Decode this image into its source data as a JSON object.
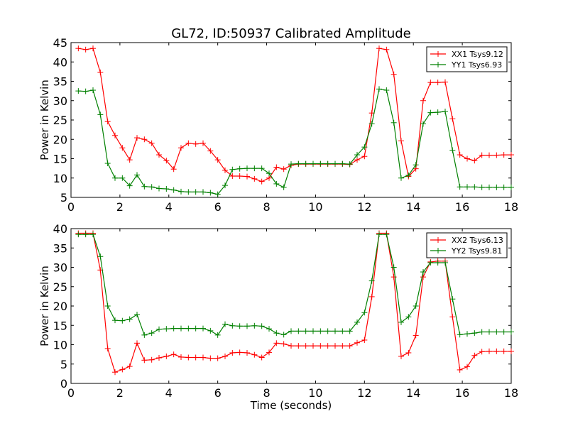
{
  "chart_data": [
    {
      "type": "line",
      "title": "GL72, ID:50937 Calibrated Amplitude",
      "xlabel": "",
      "ylabel": "Power in Kelvin",
      "xlim": [
        0,
        18
      ],
      "ylim": [
        5,
        45
      ],
      "xticks": [
        "0",
        "2",
        "4",
        "6",
        "8",
        "10",
        "12",
        "14",
        "16",
        "18"
      ],
      "yticks": [
        "5",
        "10",
        "15",
        "20",
        "25",
        "30",
        "35",
        "40",
        "45"
      ],
      "x": [
        0.3,
        0.6,
        0.9,
        1.2,
        1.5,
        1.8,
        2.1,
        2.4,
        2.7,
        3.0,
        3.3,
        3.6,
        3.9,
        4.2,
        4.5,
        4.8,
        5.1,
        5.4,
        5.7,
        6.0,
        6.3,
        6.6,
        6.9,
        7.2,
        7.5,
        7.8,
        8.1,
        8.4,
        8.7,
        9.0,
        9.3,
        9.6,
        9.9,
        10.2,
        10.5,
        10.8,
        11.1,
        11.4,
        11.7,
        12.0,
        12.3,
        12.6,
        12.9,
        13.2,
        13.5,
        13.8,
        14.1,
        14.4,
        14.7,
        15.0,
        15.3,
        15.6,
        15.9,
        16.2,
        16.5,
        16.8,
        17.1,
        17.4,
        17.7,
        18.0
      ],
      "series": [
        {
          "name": "XX1 Tsys9.12",
          "color": "#ff0000",
          "values": [
            43.5,
            43.2,
            43.5,
            37.3,
            24.6,
            21.0,
            17.8,
            14.7,
            20.4,
            20.0,
            19.0,
            16.0,
            14.5,
            12.3,
            17.8,
            19.0,
            18.8,
            19.0,
            17.0,
            14.7,
            12.0,
            10.5,
            10.5,
            10.4,
            9.8,
            9.1,
            10.0,
            12.8,
            12.3,
            13.3,
            13.6,
            13.6,
            13.6,
            13.6,
            13.6,
            13.6,
            13.6,
            13.5,
            14.7,
            15.6,
            26.8,
            43.5,
            43.2,
            36.8,
            19.6,
            10.4,
            12.4,
            30.0,
            34.7,
            34.7,
            34.8,
            25.3,
            16.0,
            15.0,
            14.5,
            15.9,
            15.9,
            15.9,
            16.0,
            16.0
          ]
        },
        {
          "name": "YY1 Tsys6.93",
          "color": "#008000",
          "values": [
            32.5,
            32.4,
            32.7,
            26.4,
            13.8,
            10.0,
            10.0,
            8.0,
            10.8,
            7.8,
            7.7,
            7.3,
            7.2,
            6.9,
            6.5,
            6.4,
            6.4,
            6.4,
            6.2,
            5.8,
            8.1,
            12.2,
            12.4,
            12.5,
            12.5,
            12.5,
            11.2,
            8.5,
            7.6,
            13.6,
            13.7,
            13.7,
            13.7,
            13.7,
            13.7,
            13.7,
            13.7,
            13.6,
            16.0,
            18.0,
            24.0,
            33.0,
            32.7,
            24.3,
            10.0,
            10.7,
            13.4,
            24.0,
            26.9,
            27.0,
            27.2,
            17.2,
            7.7,
            7.7,
            7.7,
            7.6,
            7.6,
            7.6,
            7.6,
            7.6
          ]
        }
      ],
      "legend": "top-right"
    },
    {
      "type": "line",
      "title": "",
      "xlabel": "Time (seconds)",
      "ylabel": "Power in Kelvin",
      "xlim": [
        0,
        18
      ],
      "ylim": [
        0,
        40
      ],
      "xticks": [
        "0",
        "2",
        "4",
        "6",
        "8",
        "10",
        "12",
        "14",
        "16",
        "18"
      ],
      "yticks": [
        "0",
        "5",
        "10",
        "15",
        "20",
        "25",
        "30",
        "35",
        "40"
      ],
      "x": [
        0.3,
        0.6,
        0.9,
        1.2,
        1.5,
        1.8,
        2.1,
        2.4,
        2.7,
        3.0,
        3.3,
        3.6,
        3.9,
        4.2,
        4.5,
        4.8,
        5.1,
        5.4,
        5.7,
        6.0,
        6.3,
        6.6,
        6.9,
        7.2,
        7.5,
        7.8,
        8.1,
        8.4,
        8.7,
        9.0,
        9.3,
        9.6,
        9.9,
        10.2,
        10.5,
        10.8,
        11.1,
        11.4,
        11.7,
        12.0,
        12.3,
        12.6,
        12.9,
        13.2,
        13.5,
        13.8,
        14.1,
        14.4,
        14.7,
        15.0,
        15.3,
        15.6,
        15.9,
        16.2,
        16.5,
        16.8,
        17.1,
        17.4,
        17.7,
        18.0
      ],
      "series": [
        {
          "name": "XX2 Tsys6.13",
          "color": "#ff0000",
          "values": [
            38.8,
            38.8,
            38.8,
            29.3,
            9.0,
            2.9,
            3.6,
            4.4,
            10.4,
            6.0,
            6.1,
            6.6,
            7.0,
            7.5,
            6.8,
            6.7,
            6.7,
            6.7,
            6.5,
            6.5,
            7.0,
            7.9,
            8.0,
            7.9,
            7.4,
            6.7,
            8.0,
            10.4,
            10.2,
            9.7,
            9.7,
            9.7,
            9.7,
            9.7,
            9.7,
            9.7,
            9.7,
            9.7,
            10.5,
            11.2,
            22.4,
            38.8,
            38.8,
            27.5,
            7.0,
            7.9,
            12.4,
            27.5,
            31.4,
            31.6,
            31.6,
            17.2,
            3.5,
            4.3,
            7.2,
            8.2,
            8.3,
            8.3,
            8.3,
            8.3
          ]
        },
        {
          "name": "YY2 Tsys9.81",
          "color": "#008000",
          "values": [
            38.5,
            38.5,
            38.5,
            32.8,
            20.0,
            16.3,
            16.2,
            16.6,
            17.8,
            12.5,
            13.0,
            14.0,
            14.1,
            14.2,
            14.2,
            14.2,
            14.2,
            14.2,
            13.6,
            12.5,
            15.3,
            14.9,
            14.8,
            14.8,
            14.9,
            14.8,
            14.1,
            13.0,
            12.6,
            13.5,
            13.5,
            13.5,
            13.5,
            13.5,
            13.5,
            13.5,
            13.5,
            13.5,
            15.8,
            18.3,
            26.5,
            38.5,
            38.5,
            30.0,
            15.8,
            17.2,
            20.0,
            28.8,
            31.2,
            31.2,
            31.2,
            21.8,
            12.6,
            12.8,
            13.0,
            13.3,
            13.3,
            13.3,
            13.3,
            13.3
          ]
        }
      ],
      "legend": "top-right"
    }
  ]
}
